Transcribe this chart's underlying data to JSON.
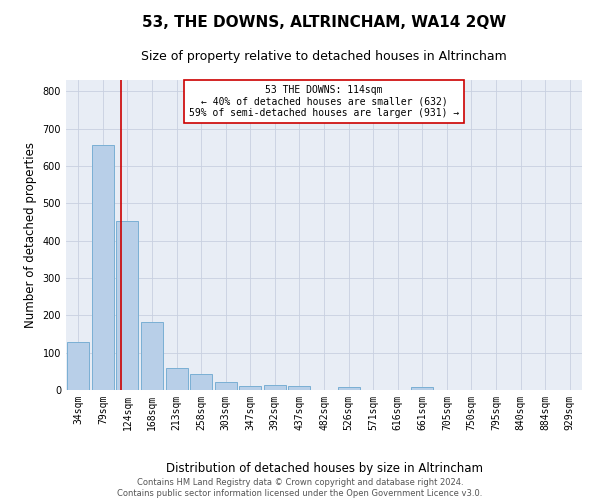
{
  "title": "53, THE DOWNS, ALTRINCHAM, WA14 2QW",
  "subtitle": "Size of property relative to detached houses in Altrincham",
  "xlabel": "Distribution of detached houses by size in Altrincham",
  "ylabel": "Number of detached properties",
  "footer_line1": "Contains HM Land Registry data © Crown copyright and database right 2024.",
  "footer_line2": "Contains public sector information licensed under the Open Government Licence v3.0.",
  "bin_labels": [
    "34sqm",
    "79sqm",
    "124sqm",
    "168sqm",
    "213sqm",
    "258sqm",
    "303sqm",
    "347sqm",
    "392sqm",
    "437sqm",
    "482sqm",
    "526sqm",
    "571sqm",
    "616sqm",
    "661sqm",
    "705sqm",
    "750sqm",
    "795sqm",
    "840sqm",
    "884sqm",
    "929sqm"
  ],
  "bar_values": [
    128,
    657,
    453,
    182,
    60,
    43,
    22,
    12,
    14,
    11,
    0,
    8,
    0,
    0,
    9,
    0,
    0,
    0,
    0,
    0,
    0
  ],
  "bar_color": "#b8cfe8",
  "bar_edge_color": "#7aafd4",
  "bar_edge_width": 0.7,
  "grid_color": "#c8d0e0",
  "bg_color": "#e8edf5",
  "redline_color": "#cc0000",
  "annotation_text": "53 THE DOWNS: 114sqm\n← 40% of detached houses are smaller (632)\n59% of semi-detached houses are larger (931) →",
  "annotation_box_color": "#ffffff",
  "ylim": [
    0,
    830
  ],
  "yticks": [
    0,
    100,
    200,
    300,
    400,
    500,
    600,
    700,
    800
  ],
  "red_line_x": 1.72,
  "title_fontsize": 11,
  "subtitle_fontsize": 9,
  "xlabel_fontsize": 8.5,
  "ylabel_fontsize": 8.5,
  "tick_fontsize": 7,
  "annotation_fontsize": 7,
  "footer_fontsize": 6
}
